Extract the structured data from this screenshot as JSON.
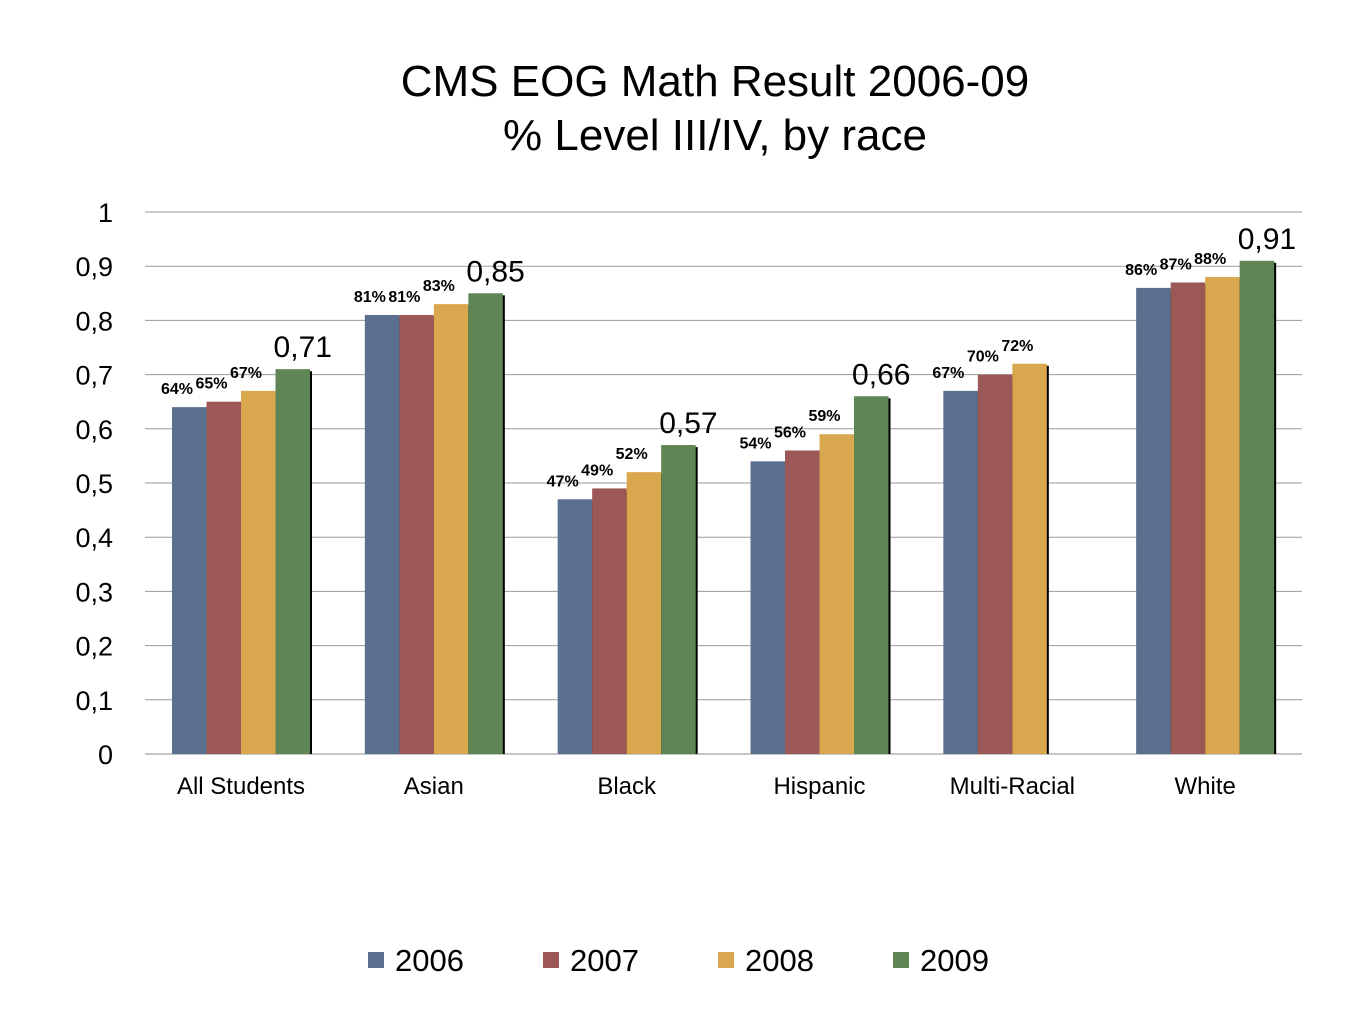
{
  "chart_data": {
    "type": "bar",
    "title": "CMS EOG Math Result 2006-09",
    "subtitle": "% Level III/IV, by race",
    "categories": [
      "All Students",
      "Asian",
      "Black",
      "Hispanic",
      "Multi-Racial",
      "White"
    ],
    "series": [
      {
        "name": "2006",
        "color": "#5b6f8e",
        "values": [
          0.64,
          0.81,
          0.47,
          0.54,
          0.67,
          0.86
        ],
        "labels": [
          "64%",
          "81%",
          "47%",
          "54%",
          "67%",
          "86%"
        ]
      },
      {
        "name": "2007",
        "color": "#9b5857",
        "values": [
          0.65,
          0.81,
          0.49,
          0.56,
          0.7,
          0.87
        ],
        "labels": [
          "65%",
          "81%",
          "49%",
          "56%",
          "70%",
          "87%"
        ]
      },
      {
        "name": "2008",
        "color": "#d9a84e",
        "values": [
          0.67,
          0.83,
          0.52,
          0.59,
          0.72,
          0.88
        ],
        "labels": [
          "67%",
          "83%",
          "52%",
          "59%",
          "72%",
          "88%"
        ]
      },
      {
        "name": "2009",
        "color": "#5e8553",
        "values": [
          0.71,
          0.85,
          0.57,
          0.66,
          null,
          0.91
        ],
        "labels": [
          "0,71",
          "0,85",
          "0,57",
          "0,66",
          "",
          "0,91"
        ]
      }
    ],
    "y_ticks": [
      "0",
      "0,1",
      "0,2",
      "0,3",
      "0,4",
      "0,5",
      "0,6",
      "0,7",
      "0,8",
      "0,9",
      "1"
    ],
    "ylim": [
      0,
      1
    ],
    "grid": true,
    "legend_position": "bottom",
    "xlabel": "",
    "ylabel": ""
  }
}
